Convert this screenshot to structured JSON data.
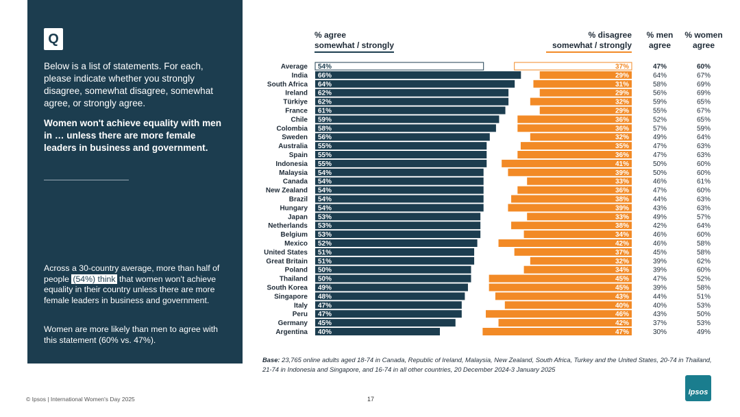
{
  "sidebar": {
    "badge": "Q",
    "instructions": "Below is a list of statements. For each, please indicate whether you strongly disagree, somewhat disagree, somewhat agree, or strongly agree.",
    "statement": "Women won't achieve equality with men in … unless there are more female leaders in business and government.",
    "summary_pre": "Across a 30-country average, more than half of people ",
    "summary_highlight": "(54%) think",
    "summary_post": " that women won't achieve equality in their country unless there are more female leaders in business and government.",
    "finding": "Women are more likely than men to agree with this statement (60% vs. 47%)."
  },
  "headers": {
    "agree_line1": "% agree",
    "agree_line2": "somewhat / strongly",
    "disagree_line1": "% disagree",
    "disagree_line2": "somewhat / strongly",
    "men_line1": "% men",
    "men_line2": "agree",
    "women_line1": "% women",
    "women_line2": "agree"
  },
  "chart_data": {
    "type": "bar",
    "categories": [
      "Average",
      "India",
      "South Africa",
      "Ireland",
      "Türkiye",
      "France",
      "Chile",
      "Colombia",
      "Sweden",
      "Australia",
      "Spain",
      "Indonesia",
      "Malaysia",
      "Canada",
      "New Zealand",
      "Brazil",
      "Hungary",
      "Japan",
      "Netherlands",
      "Belgium",
      "Mexico",
      "United States",
      "Great Britain",
      "Poland",
      "Thailand",
      "South Korea",
      "Singapore",
      "Italy",
      "Peru",
      "Germany",
      "Argentina"
    ],
    "series": [
      {
        "name": "% agree somewhat / strongly",
        "values": [
          54,
          66,
          64,
          62,
          62,
          61,
          59,
          58,
          56,
          55,
          55,
          55,
          54,
          54,
          54,
          54,
          54,
          53,
          53,
          53,
          52,
          51,
          51,
          50,
          50,
          49,
          48,
          47,
          47,
          45,
          40
        ]
      },
      {
        "name": "% disagree somewhat / strongly",
        "values": [
          37,
          29,
          31,
          29,
          32,
          29,
          36,
          36,
          32,
          35,
          36,
          41,
          39,
          33,
          36,
          38,
          39,
          33,
          38,
          34,
          42,
          37,
          32,
          34,
          45,
          45,
          43,
          40,
          46,
          42,
          47
        ]
      },
      {
        "name": "% men agree",
        "values": [
          47,
          64,
          58,
          56,
          59,
          55,
          52,
          57,
          49,
          47,
          47,
          50,
          50,
          46,
          47,
          44,
          43,
          49,
          42,
          46,
          46,
          45,
          39,
          39,
          47,
          39,
          44,
          40,
          43,
          37,
          30
        ]
      },
      {
        "name": "% women agree",
        "values": [
          60,
          67,
          69,
          69,
          65,
          67,
          65,
          59,
          64,
          63,
          63,
          60,
          60,
          61,
          60,
          63,
          63,
          57,
          64,
          60,
          58,
          58,
          62,
          60,
          52,
          58,
          51,
          53,
          50,
          53,
          49
        ]
      }
    ],
    "colors": {
      "agree": "#1c3d4f",
      "disagree": "#f28a26"
    }
  },
  "base_label": "Base:",
  "base_text": " 23,765 online adults aged 18-74 in Canada, Republic of Ireland, Malaysia, New Zealand, South Africa, Turkey and the United States, 20-74 in Thailand, 21-74 in Indonesia and Singapore, and 16-74 in all other countries, 20 December 2024-3 January 2025",
  "footer_text": "© Ipsos | International Women's Day 2025",
  "page_number": "17",
  "logo_text": "Ipsos"
}
